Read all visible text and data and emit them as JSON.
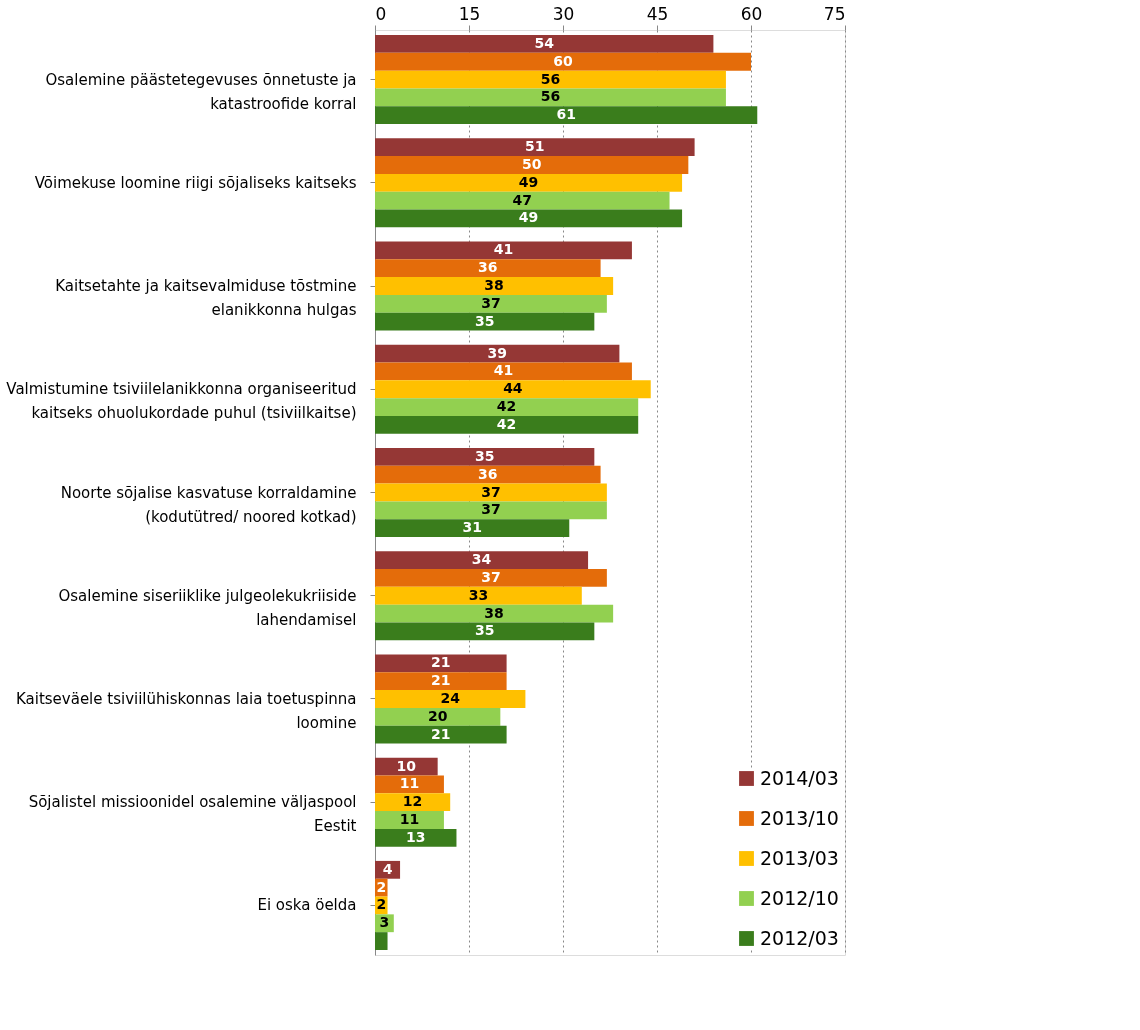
{
  "chart_data": {
    "type": "bar",
    "orientation": "horizontal",
    "categories": [
      "Osalemine päästetegevuses õnnetuste ja katastroofide korral",
      "Võimekuse loomine riigi sõjaliseks kaitseks",
      "Kaitsetahte ja kaitsevalmiduse tõstmine elanikkonna hulgas",
      "Valmistumine tsiviilelanikkonna organiseeritud kaitseks ohuolukordade puhul (tsiviilkaitse)",
      "Noorte sõjalise kasvatuse korraldamine (kodutütred/ noored kotkad)",
      "Osalemine siseriiklike julgeolekukriiside lahendamisel",
      "Kaitseväele tsiviilühiskonnas laia toetuspinna loomine",
      "Sõjalistel missioonidel osalemine väljaspool Eestit",
      "Ei oska öelda"
    ],
    "series": [
      {
        "name": "2014/03",
        "color": "#953735",
        "values": [
          54,
          51,
          41,
          39,
          35,
          34,
          21,
          10,
          4
        ],
        "value_labels": [
          "54",
          "51",
          "41",
          "39",
          "35",
          "34",
          "21",
          "10",
          "4"
        ]
      },
      {
        "name": "2013/10",
        "color": "#e46c0a",
        "values": [
          60,
          50,
          36,
          41,
          36,
          37,
          21,
          11,
          2
        ],
        "value_labels": [
          "60",
          "50",
          "36",
          "41",
          "36",
          "37",
          "21",
          "11",
          "2"
        ]
      },
      {
        "name": "2013/03",
        "color": "#ffc000",
        "values": [
          56,
          49,
          38,
          44,
          37,
          33,
          24,
          12,
          2
        ],
        "value_labels": [
          "56",
          "49",
          "38",
          "44",
          "37",
          "33",
          "24",
          "12",
          "2"
        ]
      },
      {
        "name": "2012/10",
        "color": "#92d050",
        "values": [
          56,
          47,
          37,
          42,
          37,
          38,
          20,
          11,
          3
        ],
        "value_labels": [
          "56",
          "47",
          "37",
          "42",
          "37",
          "38",
          "20",
          "11",
          "3"
        ]
      },
      {
        "name": "2012/03",
        "color": "#3a7d1c",
        "values": [
          61,
          49,
          35,
          42,
          31,
          35,
          21,
          13,
          2
        ],
        "value_labels": [
          "61",
          "49",
          "35",
          "42",
          "31",
          "35",
          "21",
          "13",
          null
        ]
      }
    ],
    "xlim": [
      0,
      75
    ],
    "xticks": [
      0,
      15,
      30,
      45,
      60,
      75
    ],
    "grid": "x",
    "legend": "bottom right"
  }
}
